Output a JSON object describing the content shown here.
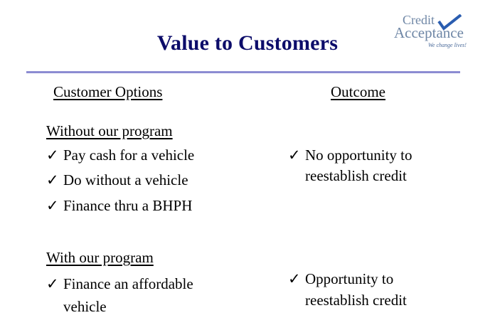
{
  "slide": {
    "title": "Value to Customers"
  },
  "logo": {
    "line1": "Credit",
    "line2": "Acceptance",
    "tagline": "We change lives!",
    "accent": "#2a5db0"
  },
  "columns": {
    "left_header": "Customer Options",
    "right_header": "Outcome"
  },
  "check_glyph": "✓",
  "without": {
    "heading": "Without our program",
    "options": [
      "Pay cash for a vehicle",
      "Do without a vehicle",
      "Finance thru a BHPH"
    ],
    "outcome_line1": "No opportunity to",
    "outcome_line2": "reestablish credit"
  },
  "with": {
    "heading": "With our program",
    "option_line1": "Finance an affordable",
    "option_line2": "vehicle",
    "outcome_line1": "Opportunity to",
    "outcome_line2": "reestablish credit"
  }
}
